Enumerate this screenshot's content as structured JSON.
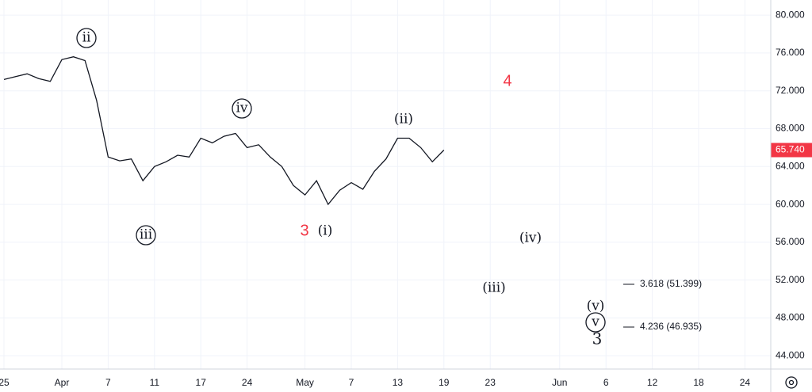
{
  "chart_data": {
    "type": "line",
    "categories": [
      "25",
      null,
      null,
      null,
      null,
      "Apr",
      null,
      null,
      null,
      "7",
      null,
      null,
      null,
      "11",
      null,
      null,
      null,
      "17",
      null,
      null,
      null,
      "24",
      null,
      null,
      null,
      null,
      "May",
      null,
      null,
      null,
      "7",
      null,
      null,
      null,
      "13",
      null,
      null,
      null,
      "19",
      null,
      null,
      null,
      "23",
      null,
      null,
      null,
      null,
      null,
      "Jun",
      null,
      null,
      null,
      "6",
      null,
      null,
      null,
      "12",
      null,
      null,
      null,
      "18",
      null,
      null,
      null,
      "24"
    ],
    "series": [
      {
        "color": "#131722",
        "values": [
          73.2,
          73.5,
          73.8,
          73.3,
          73.0,
          75.3,
          75.6,
          75.2,
          71.0,
          65.0,
          64.6,
          64.8,
          62.5,
          64.0,
          64.5,
          65.2,
          65.0,
          67.0,
          66.5,
          67.2,
          67.5,
          66.0,
          66.3,
          65.0,
          64.0,
          62.0,
          61.0,
          62.5,
          60.0,
          61.5,
          62.3,
          61.6,
          63.5,
          64.8,
          67.0,
          67.0,
          66.0,
          64.5,
          65.74,
          null,
          null,
          null,
          null,
          null,
          null,
          null,
          null,
          null,
          null,
          null,
          null,
          null,
          null,
          null,
          null,
          null,
          null,
          null,
          null,
          null,
          null,
          null,
          null,
          null,
          null
        ]
      }
    ],
    "last_label": "65.740",
    "ylim": [
      42.6,
      81.6
    ],
    "yticks": [
      {
        "value": 44,
        "label": "44.000"
      },
      {
        "value": 48,
        "label": "48.000"
      },
      {
        "value": 52,
        "label": "52.000"
      },
      {
        "value": 56,
        "label": "56.000"
      },
      {
        "value": 60,
        "label": "60.000"
      },
      {
        "value": 64,
        "label": "64.000"
      },
      {
        "value": 68,
        "label": "68.000"
      },
      {
        "value": 72,
        "label": "72.000"
      },
      {
        "value": 76,
        "label": "76.000"
      },
      {
        "value": 80,
        "label": "80.000"
      }
    ],
    "grid": true,
    "annotations": [
      "ii",
      "iii",
      "iv",
      "3",
      "(i)",
      "(ii)",
      "4",
      "(iii)",
      "(iv)",
      "(v)",
      "v",
      "3",
      "3.618 (51.399)",
      "4.236 (46.935)"
    ]
  }
}
